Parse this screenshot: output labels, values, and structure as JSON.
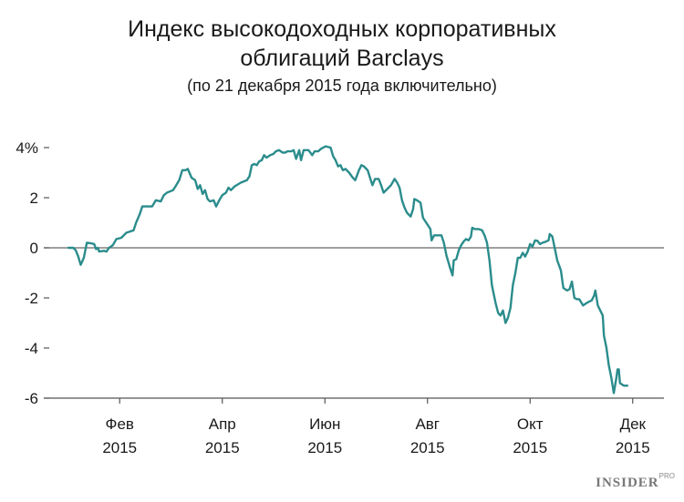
{
  "chart_data": {
    "type": "line",
    "title_line1": "Индекс высокодоходных корпоративных",
    "title_line2": "облигаций Barclays",
    "subtitle": "(по 21 декабря 2015 года включительно)",
    "xlabel": "",
    "ylabel": "",
    "ylim": [
      -6,
      4
    ],
    "y_ticks": [
      {
        "value": 4,
        "label": "4%"
      },
      {
        "value": 2,
        "label": "2"
      },
      {
        "value": 0,
        "label": "0"
      },
      {
        "value": -2,
        "label": "-2"
      },
      {
        "value": -4,
        "label": "-4"
      },
      {
        "value": -6,
        "label": "-6"
      }
    ],
    "x_domain": [
      2014.96,
      2016.0
    ],
    "x_ticks": [
      {
        "x": 2015.0833,
        "month": "Фев",
        "year": "2015"
      },
      {
        "x": 2015.25,
        "month": "Апр",
        "year": "2015"
      },
      {
        "x": 2015.4167,
        "month": "Июн",
        "year": "2015"
      },
      {
        "x": 2015.5833,
        "month": "Авг",
        "year": "2015"
      },
      {
        "x": 2015.75,
        "month": "Окт",
        "year": "2015"
      },
      {
        "x": 2015.9167,
        "month": "Дек",
        "year": "2015"
      }
    ],
    "grid": false,
    "colors": {
      "line": "#2b8c8c",
      "axis": "#555555",
      "zero_line": "#666666"
    },
    "series": [
      {
        "name": "",
        "points": [
          [
            2015.0,
            0.0
          ],
          [
            2015.008,
            0.0
          ],
          [
            2015.012,
            -0.1
          ],
          [
            2015.016,
            -0.35
          ],
          [
            2015.02,
            -0.68
          ],
          [
            2015.025,
            -0.4
          ],
          [
            2015.03,
            0.2
          ],
          [
            2015.037,
            0.18
          ],
          [
            2015.042,
            0.15
          ],
          [
            2015.045,
            -0.05
          ],
          [
            2015.048,
            0.0
          ],
          [
            2015.05,
            -0.15
          ],
          [
            2015.058,
            -0.12
          ],
          [
            2015.062,
            -0.15
          ],
          [
            2015.066,
            0.0
          ],
          [
            2015.072,
            0.1
          ],
          [
            2015.078,
            0.35
          ],
          [
            2015.086,
            0.4
          ],
          [
            2015.094,
            0.6
          ],
          [
            2015.1,
            0.65
          ],
          [
            2015.106,
            0.7
          ],
          [
            2015.11,
            1.0
          ],
          [
            2015.116,
            1.35
          ],
          [
            2015.12,
            1.65
          ],
          [
            2015.13,
            1.65
          ],
          [
            2015.136,
            1.65
          ],
          [
            2015.142,
            1.9
          ],
          [
            2015.15,
            1.85
          ],
          [
            2015.155,
            2.1
          ],
          [
            2015.16,
            2.2
          ],
          [
            2015.17,
            2.3
          ],
          [
            2015.174,
            2.45
          ],
          [
            2015.18,
            2.7
          ],
          [
            2015.185,
            3.1
          ],
          [
            2015.19,
            3.1
          ],
          [
            2015.194,
            3.15
          ],
          [
            2015.2,
            2.8
          ],
          [
            2015.206,
            2.7
          ],
          [
            2015.21,
            2.35
          ],
          [
            2015.214,
            2.5
          ],
          [
            2015.218,
            2.15
          ],
          [
            2015.222,
            2.3
          ],
          [
            2015.226,
            1.95
          ],
          [
            2015.23,
            1.85
          ],
          [
            2015.236,
            1.9
          ],
          [
            2015.24,
            1.65
          ],
          [
            2015.245,
            1.9
          ],
          [
            2015.25,
            2.1
          ],
          [
            2015.256,
            2.2
          ],
          [
            2015.26,
            2.4
          ],
          [
            2015.264,
            2.3
          ],
          [
            2015.27,
            2.45
          ],
          [
            2015.28,
            2.6
          ],
          [
            2015.29,
            2.7
          ],
          [
            2015.294,
            2.85
          ],
          [
            2015.298,
            3.3
          ],
          [
            2015.302,
            3.35
          ],
          [
            2015.306,
            3.3
          ],
          [
            2015.31,
            3.45
          ],
          [
            2015.314,
            3.5
          ],
          [
            2015.318,
            3.7
          ],
          [
            2015.322,
            3.6
          ],
          [
            2015.328,
            3.7
          ],
          [
            2015.333,
            3.75
          ],
          [
            2015.337,
            3.85
          ],
          [
            2015.342,
            3.9
          ],
          [
            2015.348,
            3.8
          ],
          [
            2015.352,
            3.8
          ],
          [
            2015.356,
            3.85
          ],
          [
            2015.362,
            3.85
          ],
          [
            2015.366,
            3.9
          ],
          [
            2015.37,
            3.55
          ],
          [
            2015.375,
            3.9
          ],
          [
            2015.378,
            3.5
          ],
          [
            2015.382,
            3.9
          ],
          [
            2015.39,
            3.9
          ],
          [
            2015.396,
            3.7
          ],
          [
            2015.4,
            3.85
          ],
          [
            2015.406,
            3.85
          ],
          [
            2015.41,
            3.95
          ],
          [
            2015.418,
            4.05
          ],
          [
            2015.426,
            4.0
          ],
          [
            2015.43,
            3.65
          ],
          [
            2015.434,
            3.5
          ],
          [
            2015.438,
            3.25
          ],
          [
            2015.442,
            3.3
          ],
          [
            2015.446,
            3.1
          ],
          [
            2015.45,
            3.15
          ],
          [
            2015.456,
            3.0
          ],
          [
            2015.462,
            2.8
          ],
          [
            2015.466,
            2.7
          ],
          [
            2015.472,
            3.1
          ],
          [
            2015.476,
            3.3
          ],
          [
            2015.48,
            3.25
          ],
          [
            2015.486,
            3.1
          ],
          [
            2015.49,
            2.8
          ],
          [
            2015.494,
            2.5
          ],
          [
            2015.498,
            2.75
          ],
          [
            2015.504,
            2.75
          ],
          [
            2015.508,
            2.5
          ],
          [
            2015.512,
            2.2
          ],
          [
            2015.518,
            2.35
          ],
          [
            2015.524,
            2.5
          ],
          [
            2015.53,
            2.75
          ],
          [
            2015.534,
            2.6
          ],
          [
            2015.538,
            2.4
          ],
          [
            2015.542,
            1.9
          ],
          [
            2015.546,
            1.6
          ],
          [
            2015.55,
            1.4
          ],
          [
            2015.556,
            1.25
          ],
          [
            2015.56,
            1.55
          ],
          [
            2015.562,
            1.95
          ],
          [
            2015.566,
            1.9
          ],
          [
            2015.572,
            1.8
          ],
          [
            2015.576,
            1.2
          ],
          [
            2015.58,
            1.05
          ],
          [
            2015.584,
            0.9
          ],
          [
            2015.588,
            0.75
          ],
          [
            2015.59,
            0.3
          ],
          [
            2015.594,
            0.5
          ],
          [
            2015.6,
            0.5
          ],
          [
            2015.606,
            0.5
          ],
          [
            2015.61,
            0.2
          ],
          [
            2015.614,
            -0.3
          ],
          [
            2015.62,
            -0.8
          ],
          [
            2015.624,
            -1.1
          ],
          [
            2015.626,
            -0.5
          ],
          [
            2015.63,
            -0.45
          ],
          [
            2015.634,
            -0.1
          ],
          [
            2015.638,
            0.1
          ],
          [
            2015.642,
            0.25
          ],
          [
            2015.646,
            0.35
          ],
          [
            2015.65,
            0.3
          ],
          [
            2015.654,
            0.45
          ],
          [
            2015.656,
            0.8
          ],
          [
            2015.66,
            0.75
          ],
          [
            2015.666,
            0.75
          ],
          [
            2015.672,
            0.7
          ],
          [
            2015.676,
            0.5
          ],
          [
            2015.68,
            0.2
          ],
          [
            2015.684,
            -0.5
          ],
          [
            2015.688,
            -1.5
          ],
          [
            2015.694,
            -2.2
          ],
          [
            2015.698,
            -2.6
          ],
          [
            2015.702,
            -2.7
          ],
          [
            2015.706,
            -2.5
          ],
          [
            2015.71,
            -3.0
          ],
          [
            2015.714,
            -2.8
          ],
          [
            2015.718,
            -2.4
          ],
          [
            2015.722,
            -1.5
          ],
          [
            2015.726,
            -1.0
          ],
          [
            2015.73,
            -0.4
          ],
          [
            2015.734,
            -0.4
          ],
          [
            2015.738,
            -0.2
          ],
          [
            2015.742,
            -0.35
          ],
          [
            2015.746,
            -0.15
          ],
          [
            2015.75,
            0.15
          ],
          [
            2015.754,
            0.05
          ],
          [
            2015.758,
            0.3
          ],
          [
            2015.762,
            0.28
          ],
          [
            2015.766,
            0.15
          ],
          [
            2015.77,
            0.2
          ],
          [
            2015.776,
            0.25
          ],
          [
            2015.78,
            0.3
          ],
          [
            2015.782,
            0.55
          ],
          [
            2015.786,
            0.45
          ],
          [
            2015.79,
            0.0
          ],
          [
            2015.794,
            -0.5
          ],
          [
            2015.8,
            -0.9
          ],
          [
            2015.804,
            -1.6
          ],
          [
            2015.81,
            -1.7
          ],
          [
            2015.814,
            -1.65
          ],
          [
            2015.818,
            -1.35
          ],
          [
            2015.822,
            -2.0
          ],
          [
            2015.826,
            -2.05
          ],
          [
            2015.83,
            -2.05
          ],
          [
            2015.836,
            -2.3
          ],
          [
            2015.842,
            -2.2
          ],
          [
            2015.846,
            -2.15
          ],
          [
            2015.85,
            -2.1
          ],
          [
            2015.854,
            -1.9
          ],
          [
            2015.856,
            -1.7
          ],
          [
            2015.86,
            -2.3
          ],
          [
            2015.864,
            -2.5
          ],
          [
            2015.868,
            -2.7
          ],
          [
            2015.87,
            -3.5
          ],
          [
            2015.874,
            -4.0
          ],
          [
            2015.878,
            -4.7
          ],
          [
            2015.882,
            -5.2
          ],
          [
            2015.886,
            -5.8
          ],
          [
            2015.89,
            -5.2
          ],
          [
            2015.892,
            -4.85
          ],
          [
            2015.894,
            -4.85
          ],
          [
            2015.896,
            -5.4
          ],
          [
            2015.902,
            -5.5
          ],
          [
            2015.908,
            -5.5
          ]
        ]
      }
    ]
  },
  "watermark": {
    "brand": "INSIDER",
    "sup": "PRO"
  }
}
